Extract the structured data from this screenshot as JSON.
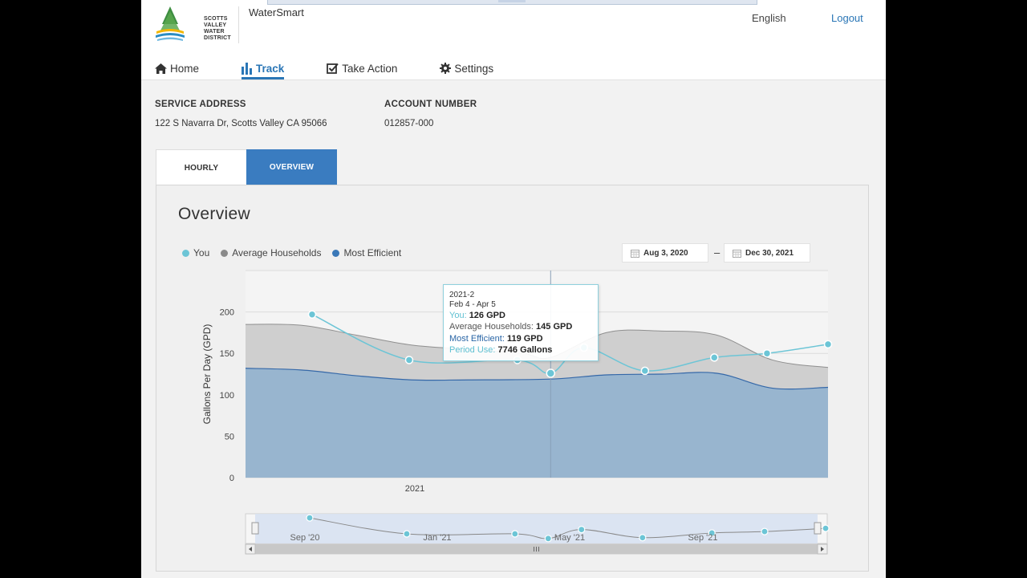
{
  "header": {
    "logo_lines": [
      "SCOTTS VALLEY",
      "WATER DISTRICT"
    ],
    "app_name": "WaterSmart",
    "language": "English",
    "logout": "Logout"
  },
  "nav": [
    {
      "label": "Home",
      "icon": "home-icon",
      "active": false
    },
    {
      "label": "Track",
      "icon": "bar-chart-icon",
      "active": true
    },
    {
      "label": "Take Action",
      "icon": "checkbox-icon",
      "active": false
    },
    {
      "label": "Settings",
      "icon": "gear-icon",
      "active": false
    }
  ],
  "account": {
    "service_address_label": "SERVICE ADDRESS",
    "service_address": "122 S Navarra Dr, Scotts Valley CA 95066",
    "account_number_label": "ACCOUNT NUMBER",
    "account_number": "012857-000"
  },
  "tabs": [
    {
      "label": "HOURLY",
      "active": false
    },
    {
      "label": "OVERVIEW",
      "active": true
    }
  ],
  "overview": {
    "title": "Overview",
    "legend": [
      {
        "label": "You",
        "color": "#6cc5d6"
      },
      {
        "label": "Average Households",
        "color": "#8a8a8a"
      },
      {
        "label": "Most Efficient",
        "color": "#3a78b8"
      }
    ],
    "start_date": "Aug 3, 2020",
    "end_date": "Dec 30, 2021",
    "date_separator": "–"
  },
  "tooltip": {
    "period": "2021-2",
    "range": "Feb 4 - Apr 5",
    "you_label": "You:",
    "you_value": "126 GPD",
    "avg_label": "Average Households:",
    "avg_value": "145 GPD",
    "eff_label": "Most Efficient:",
    "eff_value": "119 GPD",
    "period_label": "Period Use:",
    "period_value": "7746 Gallons"
  },
  "chart_data": {
    "type": "area",
    "ylabel": "Gallons Per Day (GPD)",
    "ylim": [
      0,
      250
    ],
    "yticks": [
      0,
      50,
      100,
      150,
      200
    ],
    "x_tick_labels": [
      "2021"
    ],
    "grid": true,
    "series": [
      {
        "name": "You",
        "color": "#6cc5d6",
        "type": "line",
        "points": [
          [
            0.24,
            197
          ],
          [
            0.59,
            142
          ],
          [
            0.98,
            142
          ],
          [
            1.1,
            126
          ],
          [
            1.22,
            157
          ],
          [
            1.44,
            129
          ],
          [
            1.69,
            145
          ],
          [
            1.88,
            150
          ],
          [
            2.1,
            161
          ]
        ]
      },
      {
        "name": "Average Households",
        "color": "#9a9a9a",
        "type": "area",
        "points": [
          [
            0,
            185
          ],
          [
            0.2,
            184
          ],
          [
            0.4,
            172
          ],
          [
            0.6,
            160
          ],
          [
            0.8,
            155
          ],
          [
            1.0,
            150
          ],
          [
            1.1,
            145
          ],
          [
            1.3,
            175
          ],
          [
            1.5,
            177
          ],
          [
            1.7,
            172
          ],
          [
            1.9,
            142
          ],
          [
            2.1,
            133
          ]
        ]
      },
      {
        "name": "Most Efficient",
        "color": "#3a78b8",
        "type": "area",
        "points": [
          [
            0,
            132
          ],
          [
            0.2,
            130
          ],
          [
            0.4,
            123
          ],
          [
            0.6,
            118
          ],
          [
            0.8,
            118
          ],
          [
            1.1,
            119
          ],
          [
            1.3,
            124
          ],
          [
            1.5,
            125
          ],
          [
            1.7,
            126
          ],
          [
            1.9,
            108
          ],
          [
            2.1,
            109
          ]
        ]
      }
    ],
    "navigator": {
      "labels": [
        "Sep '20",
        "Jan '21",
        "May '21",
        "Sep '21"
      ]
    }
  }
}
